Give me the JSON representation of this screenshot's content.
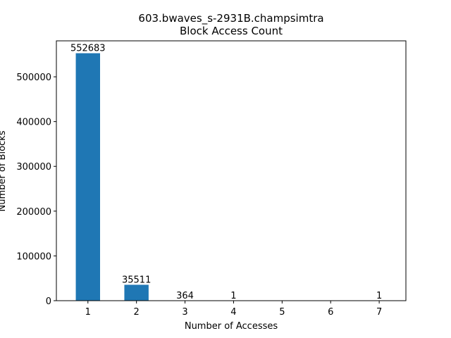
{
  "chart_data": {
    "type": "bar",
    "title": "603.bwaves_s-2931B.champsimtra",
    "subtitle": "Block Access Count",
    "xlabel": "Number of Accesses",
    "ylabel": "Number of Blocks",
    "categories": [
      "1",
      "2",
      "3",
      "4",
      "5",
      "6",
      "7"
    ],
    "x": [
      1,
      2,
      3,
      4,
      5,
      6,
      7
    ],
    "values": [
      552683,
      35511,
      364,
      1,
      null,
      null,
      1
    ],
    "data_labels": [
      "552683",
      "35511",
      "364",
      "1",
      "",
      "",
      "1"
    ],
    "xlim": [
      0.35,
      7.55
    ],
    "ylim": [
      0,
      580317
    ],
    "yticks": [
      0,
      100000,
      200000,
      300000,
      400000,
      500000
    ],
    "ytick_labels": [
      "0",
      "100000",
      "200000",
      "300000",
      "400000",
      "500000"
    ],
    "bar_color": "#1f77b4",
    "grid": false,
    "legend": "none"
  }
}
